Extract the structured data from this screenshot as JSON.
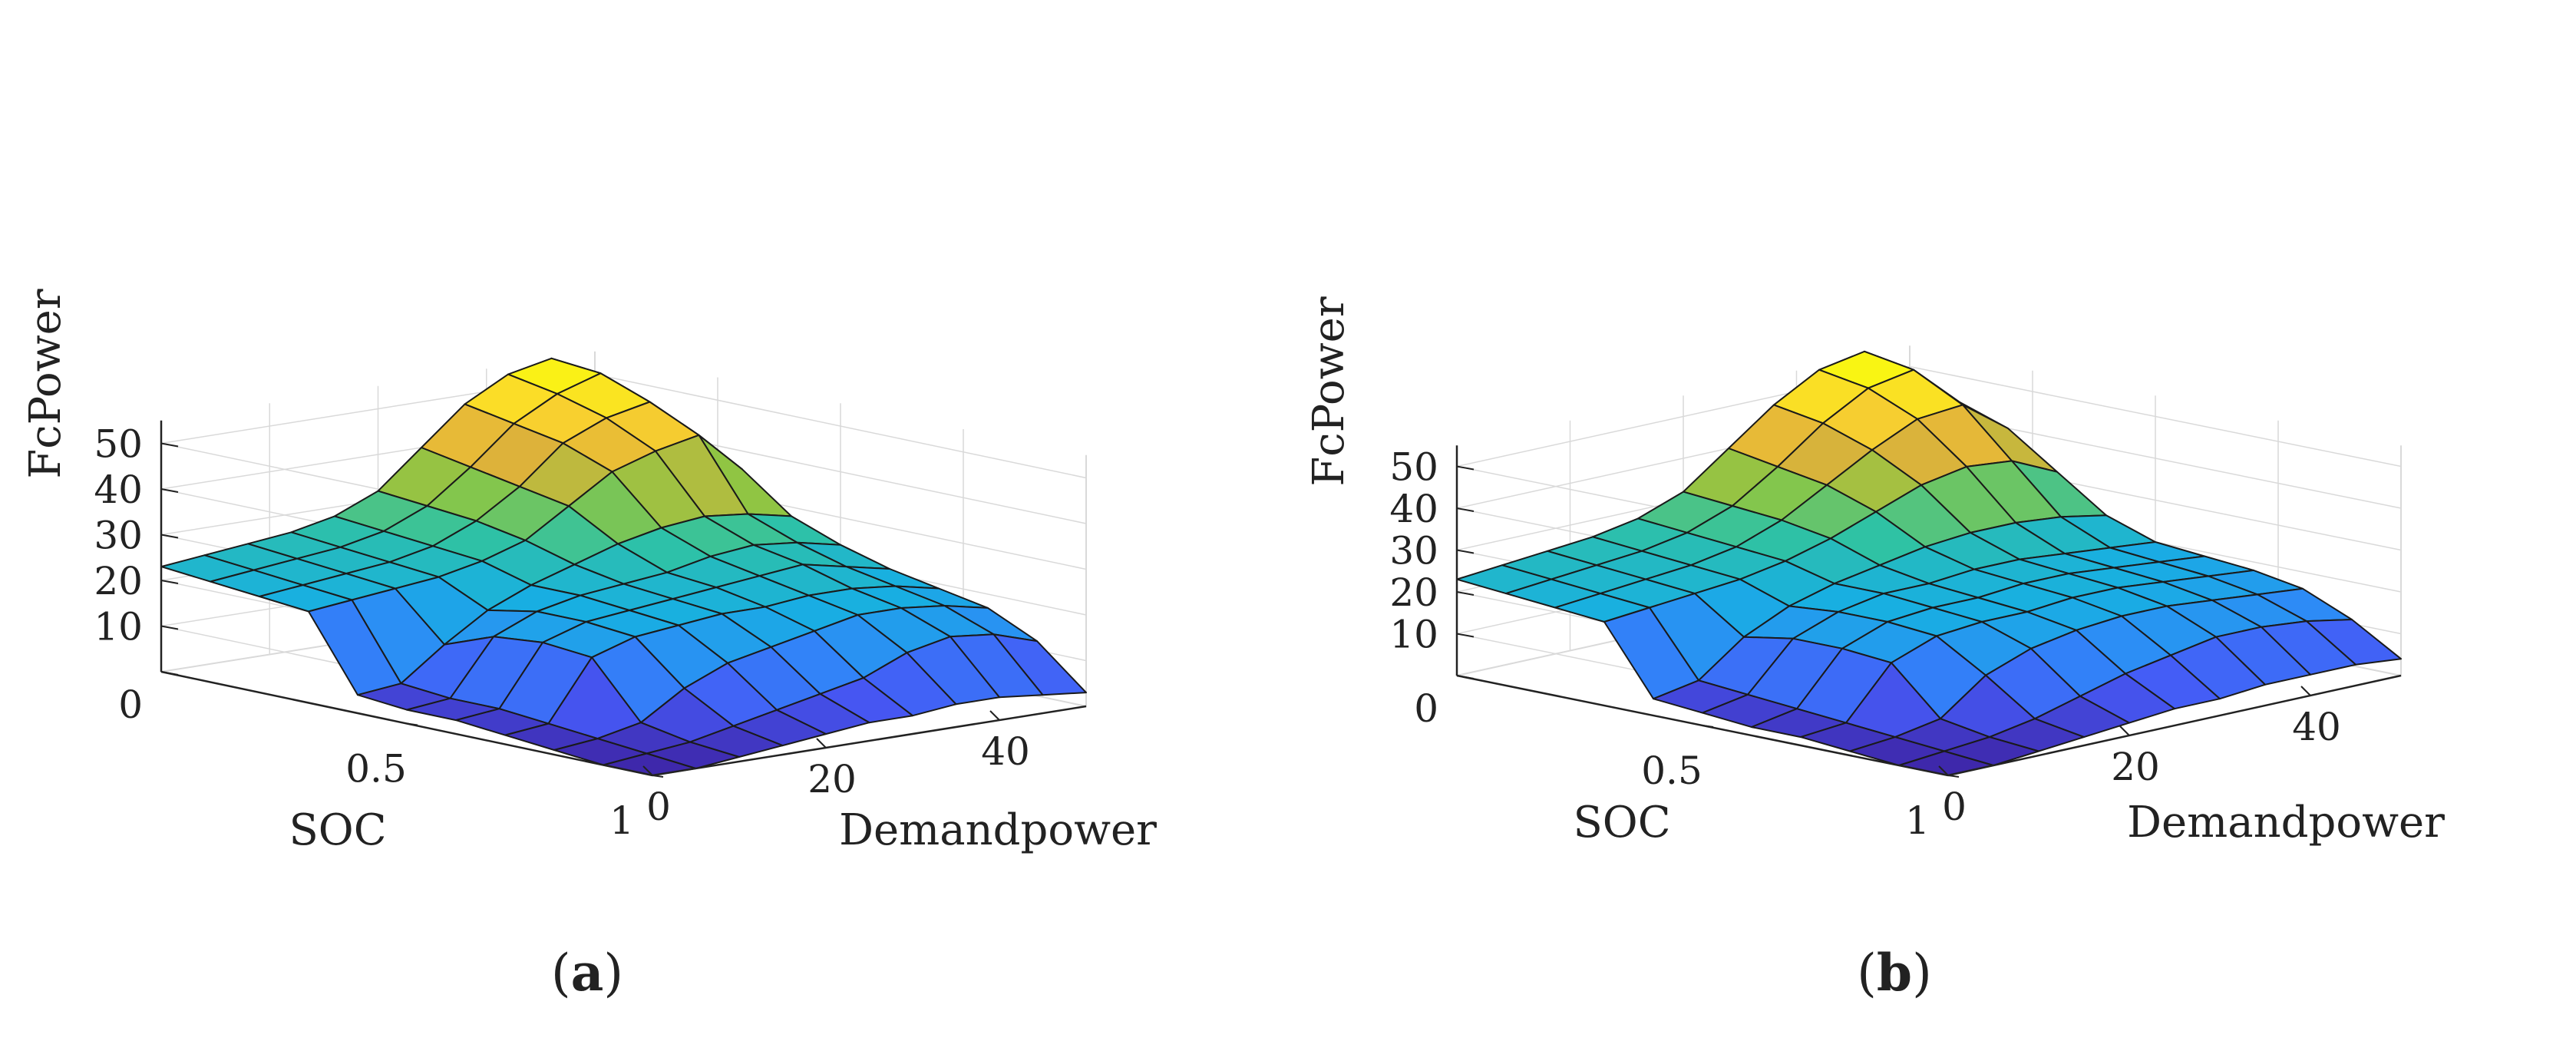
{
  "colors": {
    "axis": "#222222",
    "grid": "#d9d9d9",
    "edge": "#1a1a1a",
    "colormap": "parula",
    "parula_stops": [
      "#3e26a8",
      "#4659f6",
      "#2f88f8",
      "#18afe2",
      "#2fc2a4",
      "#8bc644",
      "#e0b13a",
      "#fbd52d",
      "#f9fb0e"
    ]
  },
  "chart_data": [
    {
      "type": "surface",
      "panel_label": "(a)",
      "panel_letter": "a",
      "zlabel": "FcPower",
      "xlabel": "SOC",
      "ylabel": "Demandpower",
      "zlim": [
        0,
        55
      ],
      "xlim": [
        0,
        1
      ],
      "ylim": [
        0,
        50
      ],
      "zticks": [
        "0",
        "10",
        "20",
        "30",
        "40",
        "50"
      ],
      "xticks": [
        "0.5",
        "1"
      ],
      "yticks": [
        "0",
        "20",
        "40"
      ],
      "grid": true,
      "soc_count": 11,
      "demand_count": 11,
      "soc_axis": [
        0,
        0.1,
        0.2,
        0.3,
        0.4,
        0.5,
        0.6,
        0.7,
        0.8,
        0.9,
        1.0
      ],
      "demand_axis": [
        0,
        5,
        10,
        15,
        20,
        25,
        30,
        35,
        40,
        45,
        50
      ],
      "z": [
        [
          23,
          24,
          25,
          26,
          28,
          32,
          40,
          48,
          53,
          55,
          44
        ],
        [
          22,
          23,
          24,
          25,
          27,
          31,
          38,
          46,
          51,
          54,
          42
        ],
        [
          21,
          22,
          23,
          24,
          26,
          30,
          36,
          44,
          48,
          50,
          40
        ],
        [
          20,
          21,
          22,
          23,
          25,
          28,
          34,
          40,
          43,
          45,
          36
        ],
        [
          4,
          5,
          12,
          18,
          22,
          25,
          28,
          30,
          31,
          30,
          28
        ],
        [
          3,
          4,
          16,
          20,
          22,
          23,
          24,
          26,
          27,
          26,
          24
        ],
        [
          3,
          4,
          17,
          20,
          21,
          22,
          23,
          24,
          25,
          23,
          21
        ],
        [
          2,
          3,
          16,
          19,
          20,
          21,
          21,
          22,
          22,
          21,
          19
        ],
        [
          1,
          2,
          4,
          10,
          14,
          16,
          18,
          20,
          20,
          19,
          17
        ],
        [
          0,
          1,
          2,
          4,
          6,
          8,
          10,
          14,
          16,
          15,
          12
        ],
        [
          0,
          0,
          1,
          2,
          3,
          4,
          4,
          5,
          5,
          4,
          3
        ]
      ]
    },
    {
      "type": "surface",
      "panel_label": "(b)",
      "panel_letter": "b",
      "zlabel": "FcPower",
      "xlabel": "SOC",
      "ylabel": "Demandpower",
      "zlim": [
        0,
        55
      ],
      "xlim": [
        0,
        1
      ],
      "ylim": [
        0,
        50
      ],
      "zticks": [
        "0",
        "10",
        "20",
        "30",
        "40",
        "50"
      ],
      "xticks": [
        "0.5",
        "1"
      ],
      "yticks": [
        "0",
        "20",
        "40"
      ],
      "grid": true,
      "soc_count": 11,
      "demand_count": 11,
      "soc_axis": [
        0,
        0.1,
        0.2,
        0.3,
        0.4,
        0.5,
        0.6,
        0.7,
        0.8,
        0.9,
        1.0
      ],
      "demand_axis": [
        0,
        5,
        10,
        15,
        20,
        25,
        30,
        35,
        40,
        45,
        50
      ],
      "z": [
        [
          23,
          24,
          25,
          26,
          28,
          32,
          40,
          48,
          54,
          56,
          46
        ],
        [
          22,
          23,
          24,
          25,
          27,
          31,
          38,
          46,
          52,
          54,
          44
        ],
        [
          21,
          22,
          23,
          24,
          26,
          30,
          36,
          42,
          47,
          48,
          40
        ],
        [
          20,
          21,
          22,
          23,
          25,
          28,
          32,
          36,
          38,
          37,
          32
        ],
        [
          4,
          6,
          14,
          19,
          22,
          24,
          26,
          27,
          27,
          26,
          24
        ],
        [
          3,
          5,
          16,
          20,
          22,
          22,
          23,
          23,
          22,
          21,
          20
        ],
        [
          2,
          4,
          16,
          20,
          21,
          21,
          22,
          22,
          21,
          20,
          19
        ],
        [
          2,
          3,
          15,
          19,
          20,
          20,
          21,
          21,
          20,
          19,
          18
        ],
        [
          1,
          2,
          4,
          12,
          16,
          18,
          19,
          19,
          18,
          17,
          16
        ],
        [
          0,
          1,
          2,
          4,
          7,
          10,
          12,
          14,
          14,
          13,
          11
        ],
        [
          0,
          0,
          1,
          2,
          3,
          4,
          4,
          5,
          5,
          5,
          4
        ]
      ]
    }
  ]
}
